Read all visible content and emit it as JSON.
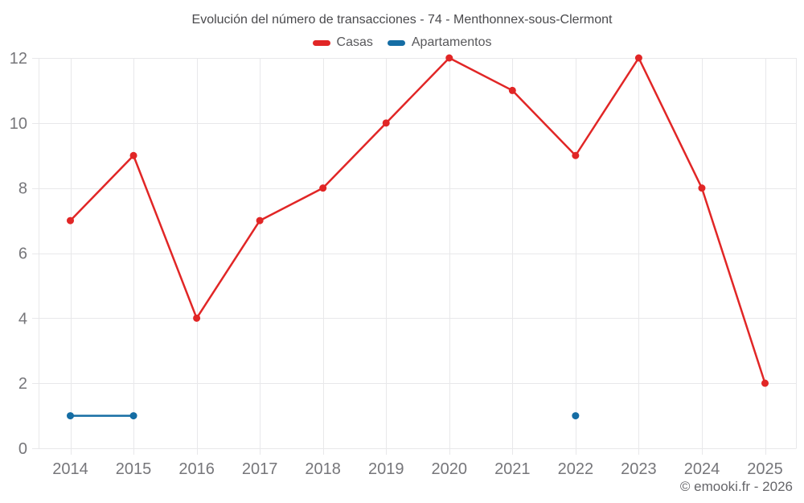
{
  "title": "Evolución del número de transacciones - 74 - Menthonnex-sous-Clermont",
  "footer": {
    "copyright": "© emooki.fr - 2026"
  },
  "colors": {
    "background": "#ffffff",
    "casas": "#e12626",
    "apartamentos": "#156da4",
    "grid": "#e8e8ea",
    "tick_label": "#76767a",
    "title_text": "#4a4a4d",
    "legend_text": "#58585b",
    "copyright_text": "#66666a"
  },
  "chart_data": {
    "type": "line",
    "title": "Evolución del número de transacciones - 74 - Menthonnex-sous-Clermont",
    "xlabel": "",
    "ylabel": "",
    "x": [
      2014,
      2015,
      2016,
      2017,
      2018,
      2019,
      2020,
      2021,
      2022,
      2023,
      2024,
      2025
    ],
    "series": [
      {
        "name": "Casas",
        "color": "#e12626",
        "values": [
          7,
          9,
          4,
          7,
          8,
          10,
          12,
          11,
          9,
          12,
          8,
          2
        ]
      },
      {
        "name": "Apartamentos",
        "color": "#156da4",
        "values": [
          1,
          1,
          null,
          null,
          null,
          null,
          null,
          null,
          1,
          null,
          null,
          null
        ]
      }
    ],
    "ylim": [
      0,
      12
    ],
    "yticks": [
      0,
      2,
      4,
      6,
      8,
      10,
      12
    ],
    "grid": true,
    "legend_position": "top"
  }
}
